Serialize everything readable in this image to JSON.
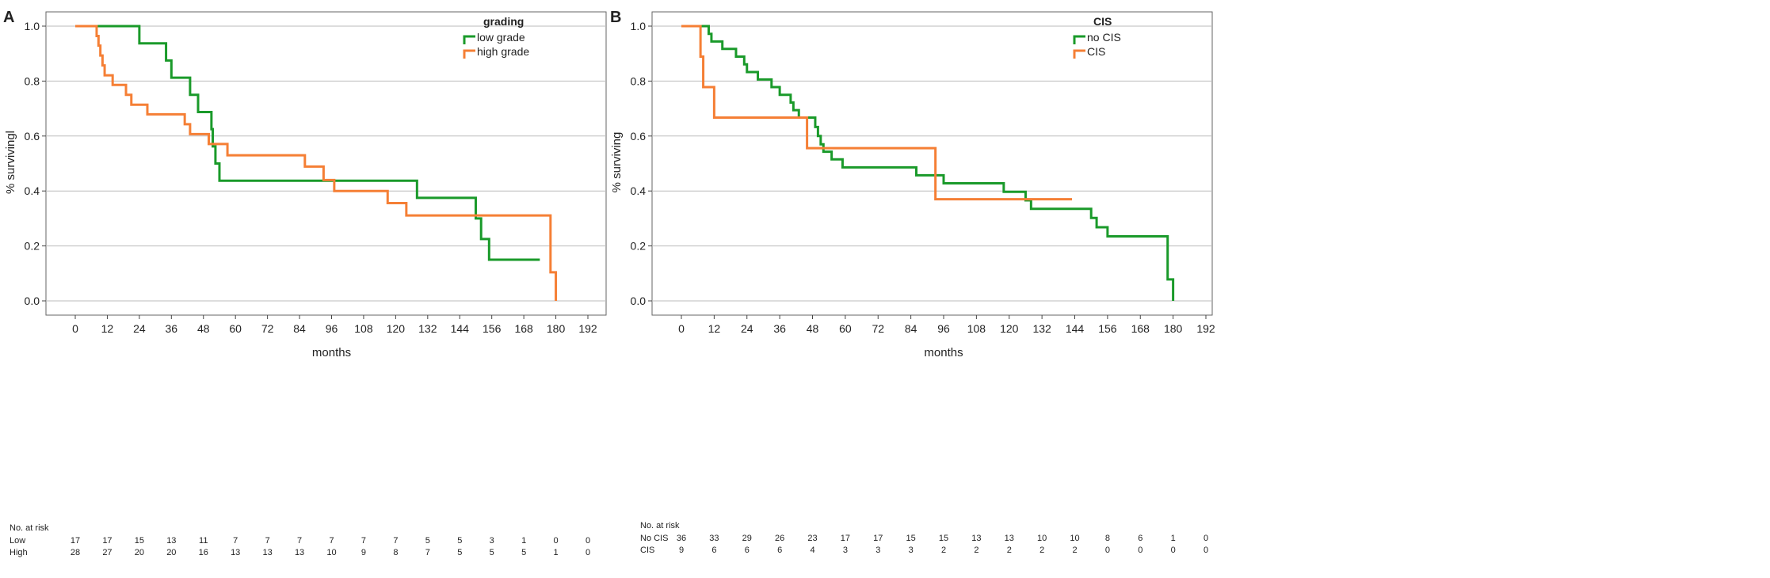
{
  "chart_data": [
    {
      "panel_label": "A",
      "type": "line",
      "subtype": "kaplan-meier",
      "xlabel": "months",
      "ylabel": "% survivingl",
      "xlim": [
        0,
        192
      ],
      "ylim": [
        0,
        1
      ],
      "xticks": [
        0,
        12,
        24,
        36,
        48,
        60,
        72,
        84,
        96,
        108,
        120,
        132,
        144,
        156,
        168,
        180,
        192
      ],
      "yticks": [
        "0.0",
        "0.2",
        "0.4",
        "0.6",
        "0.8",
        "1.0"
      ],
      "legend_title": "grading",
      "legend_position": "top-right",
      "series": [
        {
          "name": "low grade",
          "color": "#1a9a2a",
          "steps": [
            [
              0,
              1
            ],
            [
              24,
              0.9375
            ],
            [
              34,
              0.875
            ],
            [
              36,
              0.8125
            ],
            [
              43,
              0.75
            ],
            [
              46,
              0.6875
            ],
            [
              51,
              0.625
            ],
            [
              51.5,
              0.5625
            ],
            [
              52.5,
              0.5
            ],
            [
              54,
              0.4375
            ],
            [
              128,
              0.375
            ],
            [
              150,
              0.3
            ],
            [
              152,
              0.225
            ],
            [
              155,
              0.15
            ],
            [
              174,
              0.15
            ]
          ]
        },
        {
          "name": "high grade",
          "color": "#f57f35",
          "steps": [
            [
              0,
              1
            ],
            [
              8,
              0.964
            ],
            [
              8.7,
              0.929
            ],
            [
              9.4,
              0.893
            ],
            [
              10.2,
              0.857
            ],
            [
              11,
              0.821
            ],
            [
              14,
              0.786
            ],
            [
              19,
              0.75
            ],
            [
              21,
              0.714
            ],
            [
              27,
              0.679
            ],
            [
              41,
              0.643
            ],
            [
              43,
              0.607
            ],
            [
              50,
              0.571
            ],
            [
              57,
              0.53
            ],
            [
              86,
              0.489
            ],
            [
              93,
              0.44
            ],
            [
              97,
              0.4
            ],
            [
              117,
              0.356
            ],
            [
              124,
              0.311
            ],
            [
              178,
              0.104
            ],
            [
              180,
              0
            ],
            [
              180,
              0
            ]
          ]
        }
      ],
      "risk_table": {
        "title": "No. at risk",
        "rows": [
          {
            "label": "Low",
            "values": [
              "17",
              "17",
              "15",
              "13",
              "11",
              "7",
              "7",
              "7",
              "7",
              "7",
              "7",
              "5",
              "5",
              "3",
              "1",
              "0",
              "0"
            ]
          },
          {
            "label": "High",
            "values": [
              "28",
              "27",
              "20",
              "20",
              "16",
              "13",
              "13",
              "13",
              "10",
              "9",
              "8",
              "7",
              "5",
              "5",
              "5",
              "1",
              "0"
            ]
          }
        ]
      }
    },
    {
      "panel_label": "B",
      "type": "line",
      "subtype": "kaplan-meier",
      "xlabel": "months",
      "ylabel": "% surviving",
      "xlim": [
        0,
        192
      ],
      "ylim": [
        0,
        1
      ],
      "xticks": [
        0,
        12,
        24,
        36,
        48,
        60,
        72,
        84,
        96,
        108,
        120,
        132,
        144,
        156,
        168,
        180,
        192
      ],
      "yticks": [
        "0.0",
        "0.2",
        "0.4",
        "0.6",
        "0.8",
        "1.0"
      ],
      "legend_title": "CIS",
      "legend_position": "top-right",
      "series": [
        {
          "name": "no CIS",
          "color": "#1a9a2a",
          "steps": [
            [
              0,
              1
            ],
            [
              10,
              0.972
            ],
            [
              11,
              0.944
            ],
            [
              15,
              0.917
            ],
            [
              20,
              0.889
            ],
            [
              23,
              0.861
            ],
            [
              24,
              0.833
            ],
            [
              28,
              0.806
            ],
            [
              33,
              0.778
            ],
            [
              36,
              0.75
            ],
            [
              40,
              0.722
            ],
            [
              41,
              0.694
            ],
            [
              43,
              0.667
            ],
            [
              49,
              0.633
            ],
            [
              50,
              0.6
            ],
            [
              51,
              0.57
            ],
            [
              52,
              0.543
            ],
            [
              55,
              0.515
            ],
            [
              59,
              0.486
            ],
            [
              86,
              0.457
            ],
            [
              96,
              0.428
            ],
            [
              118,
              0.397
            ],
            [
              126,
              0.366
            ],
            [
              128,
              0.335
            ],
            [
              150,
              0.302
            ],
            [
              152,
              0.268
            ],
            [
              156,
              0.235
            ],
            [
              178,
              0.078
            ],
            [
              180,
              0
            ],
            [
              180,
              0
            ]
          ]
        },
        {
          "name": "CIS",
          "color": "#f57f35",
          "steps": [
            [
              0,
              1
            ],
            [
              7,
              0.889
            ],
            [
              8,
              0.778
            ],
            [
              12,
              0.667
            ],
            [
              46,
              0.556
            ],
            [
              93,
              0.37
            ],
            [
              143,
              0.37
            ]
          ]
        }
      ],
      "risk_table": {
        "title": "No. at risk",
        "rows": [
          {
            "label": "No CIS",
            "values": [
              "36",
              "33",
              "29",
              "26",
              "23",
              "17",
              "17",
              "15",
              "15",
              "13",
              "13",
              "10",
              "10",
              "8",
              "6",
              "1",
              "0"
            ]
          },
          {
            "label": "CIS",
            "values": [
              "9",
              "6",
              "6",
              "6",
              "4",
              "3",
              "3",
              "3",
              "2",
              "2",
              "2",
              "2",
              "2",
              "0",
              "0",
              "0",
              "0"
            ]
          }
        ]
      }
    }
  ]
}
